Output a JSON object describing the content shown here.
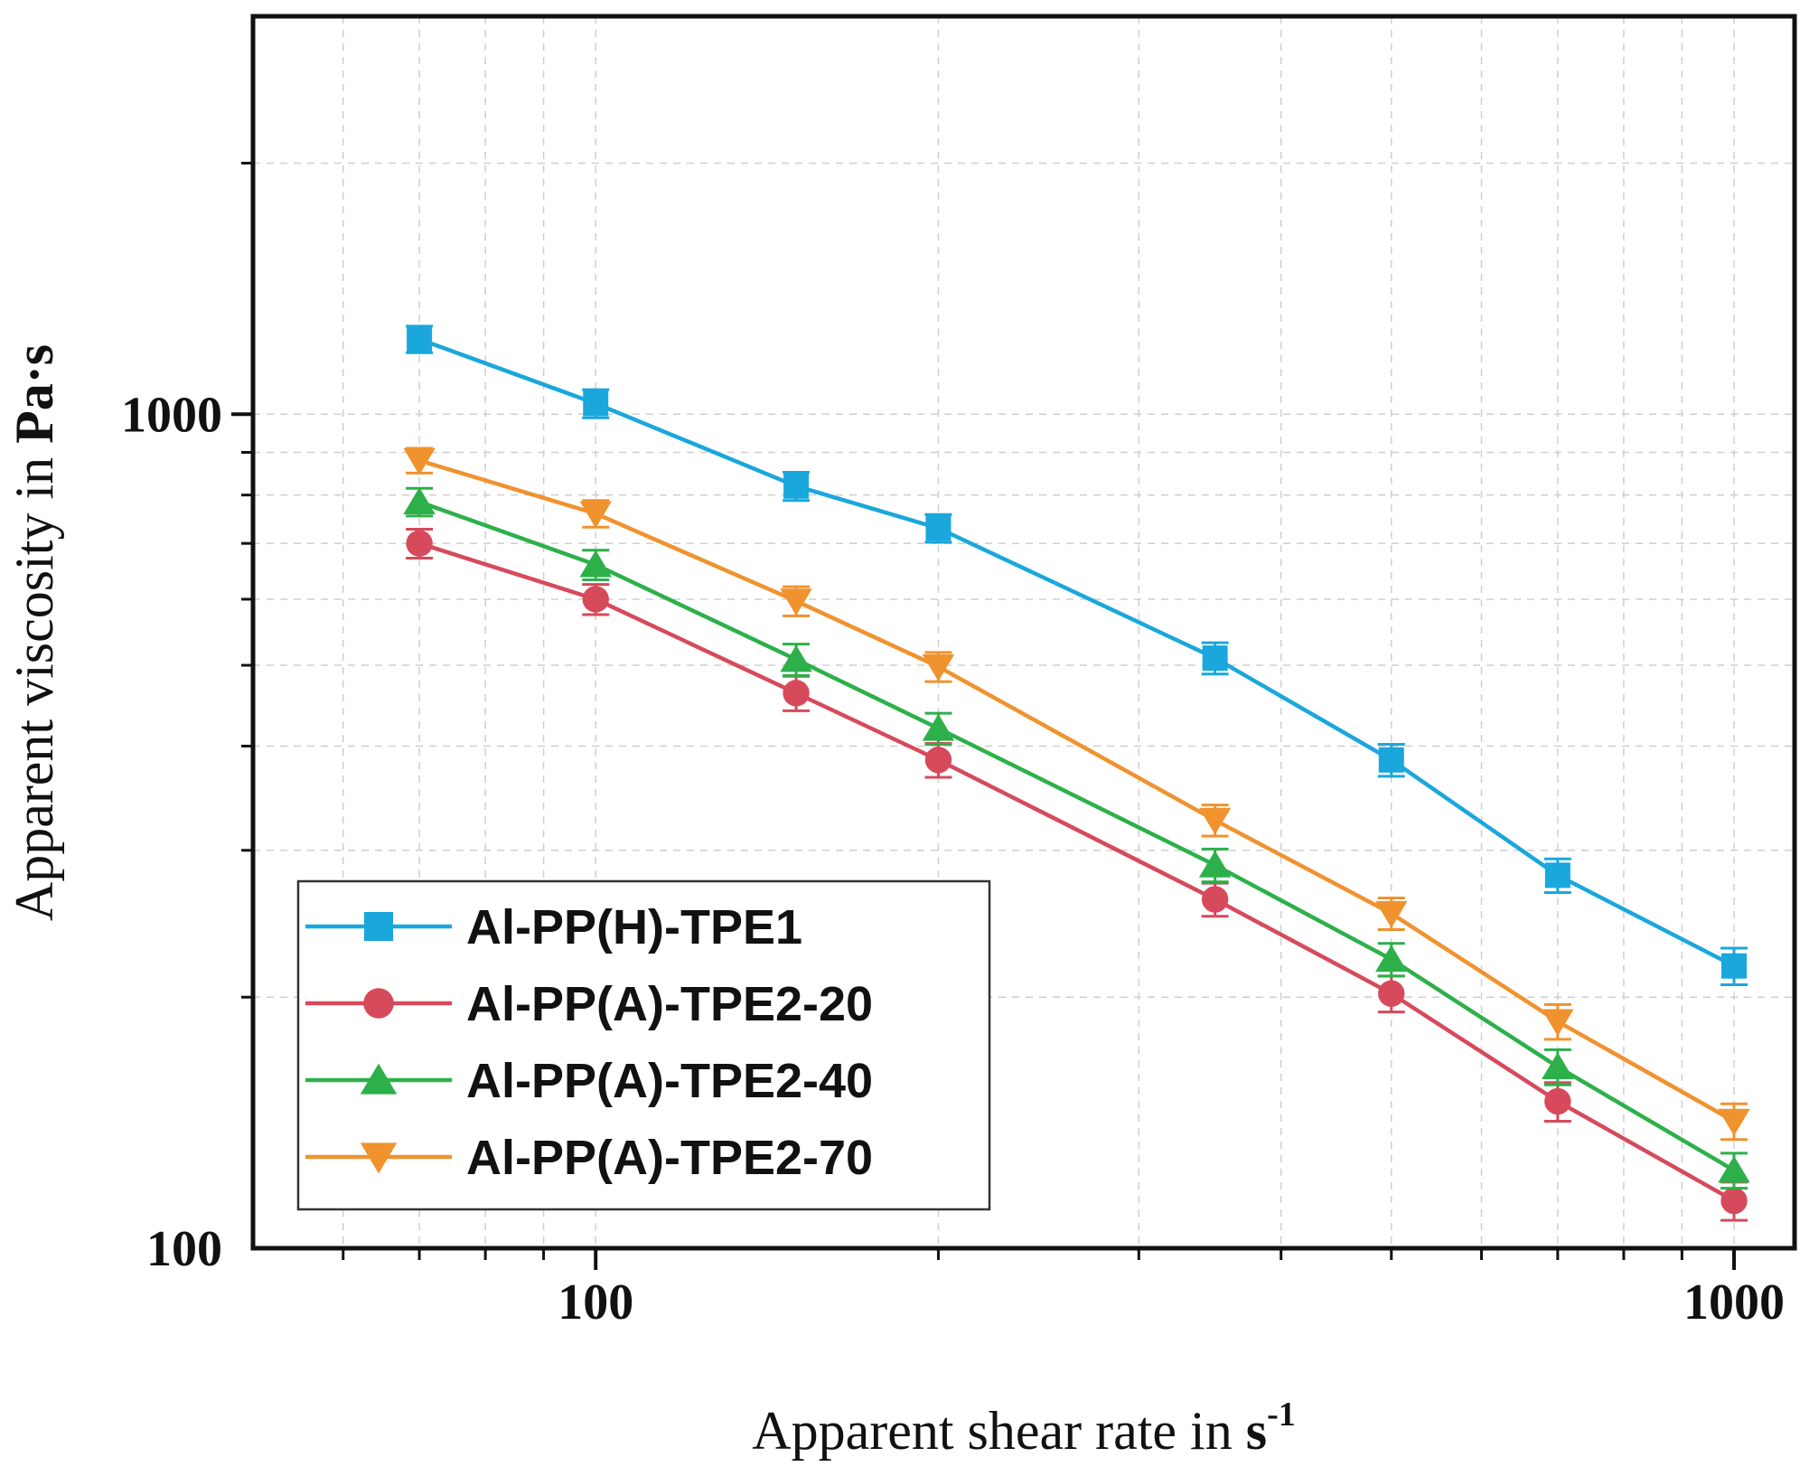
{
  "chart_data": {
    "type": "line",
    "xlabel_prefix": "Apparent shear rate in ",
    "xlabel_unit": "s",
    "xlabel_unit_sup": "-1",
    "ylabel_prefix": "Apparent viscosity in ",
    "ylabel_unit": "Pa·s",
    "x_scale": "log",
    "y_scale": "log",
    "xlim": [
      50,
      1000
    ],
    "ylim": [
      100,
      3000
    ],
    "x_ticks": [
      100,
      1000
    ],
    "x_tick_labels": [
      "100",
      "1000"
    ],
    "y_ticks": [
      100,
      1000
    ],
    "y_tick_labels": [
      "100",
      "1000"
    ],
    "grid": true,
    "legend_position": "bottom-left",
    "series": [
      {
        "name": "Al-PP(H)-TPE1",
        "color": "#1aa7dc",
        "marker": "square",
        "x": [
          70,
          100,
          150,
          200,
          350,
          500,
          700,
          1000
        ],
        "y": [
          1230,
          1030,
          820,
          730,
          510,
          385,
          280,
          218
        ],
        "err": [
          45,
          40,
          32,
          28,
          22,
          17,
          13,
          11
        ]
      },
      {
        "name": "Al-PP(A)-TPE2-20",
        "color": "#d64a5c",
        "marker": "circle",
        "x": [
          70,
          100,
          150,
          200,
          350,
          500,
          700,
          1000
        ],
        "y": [
          700,
          600,
          463,
          385,
          262,
          202,
          150,
          114
        ],
        "err": [
          28,
          25,
          22,
          18,
          12,
          10,
          8,
          6
        ]
      },
      {
        "name": "Al-PP(A)-TPE2-40",
        "color": "#2db04a",
        "marker": "triangle-up",
        "x": [
          70,
          100,
          150,
          200,
          350,
          500,
          700,
          1000
        ],
        "y": [
          785,
          660,
          508,
          420,
          288,
          222,
          165,
          124
        ],
        "err": [
          30,
          27,
          22,
          18,
          13,
          10,
          8,
          6
        ]
      },
      {
        "name": "Al-PP(A)-TPE2-70",
        "color": "#f0922e",
        "marker": "triangle-down",
        "x": [
          70,
          100,
          150,
          200,
          350,
          500,
          700,
          1000
        ],
        "y": [
          880,
          760,
          597,
          498,
          326,
          252,
          187,
          142
        ],
        "err": [
          30,
          28,
          24,
          20,
          14,
          11,
          9,
          7
        ]
      }
    ]
  }
}
